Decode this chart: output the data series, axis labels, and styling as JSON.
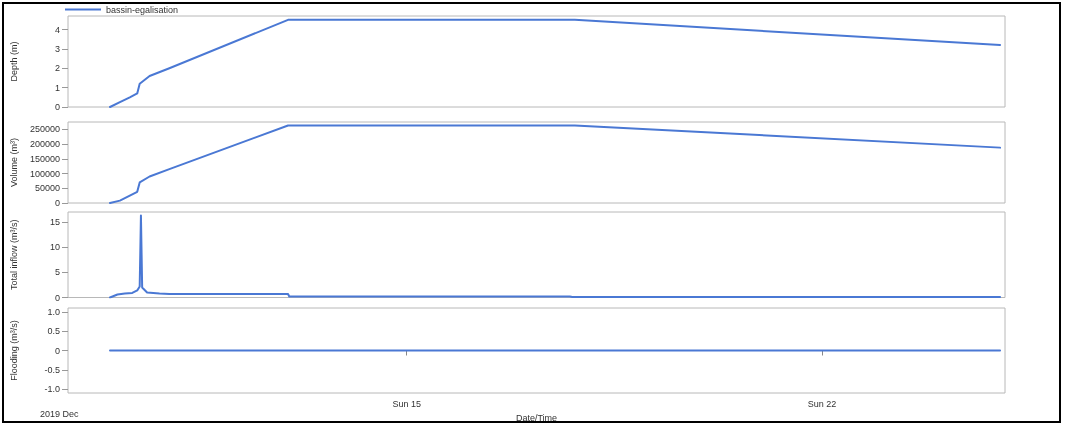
{
  "chart_data": [
    {
      "type": "line",
      "ylabel": "Depth (m)",
      "legend": "top left",
      "tick_labels": "y",
      "grid": false,
      "marker": "none",
      "x": [
        "2019-12-10T00:00",
        "2019-12-10T04:00",
        "2019-12-10T08:00",
        "2019-12-10T11:00",
        "2019-12-10T12:00",
        "2019-12-10T16:00",
        "2019-12-11T00:00",
        "2019-12-13T00:00",
        "2019-12-17T20:00",
        "2019-12-25T00:00"
      ],
      "series": [
        {
          "name": "bassin-egalisation",
          "color": "#4a78d4",
          "values": [
            0,
            0.25,
            0.5,
            0.7,
            1.2,
            1.6,
            2.0,
            4.5,
            4.5,
            3.2
          ]
        }
      ],
      "xlim": [
        "2019-12-09T07:00",
        "2019-12-25T02:00"
      ],
      "ylim": [
        0,
        4.7
      ],
      "yticks": [
        0,
        1,
        2,
        3,
        4
      ]
    },
    {
      "type": "line",
      "ylabel": "Volume (m³)",
      "tick_labels": "y",
      "grid": false,
      "marker": "none",
      "x": [
        "2019-12-10T00:00",
        "2019-12-10T04:00",
        "2019-12-10T08:00",
        "2019-12-10T11:00",
        "2019-12-10T12:00",
        "2019-12-10T16:00",
        "2019-12-11T00:00",
        "2019-12-13T00:00",
        "2019-12-17T20:00",
        "2019-12-25T00:00"
      ],
      "series": [
        {
          "color": "#4a78d4",
          "values": [
            0,
            8000,
            25000,
            38000,
            70000,
            90000,
            115000,
            263000,
            263000,
            188000
          ]
        }
      ],
      "xlim": [
        "2019-12-09T07:00",
        "2019-12-25T02:00"
      ],
      "ylim": [
        0,
        275000
      ],
      "yticks": [
        0,
        50000,
        100000,
        150000,
        200000,
        250000
      ]
    },
    {
      "type": "line",
      "ylabel": "Total inflow (m³/s)",
      "tick_labels": "y",
      "grid": false,
      "marker": "none",
      "x": [
        "2019-12-10T00:00",
        "2019-12-10T03:00",
        "2019-12-10T06:00",
        "2019-12-10T09:00",
        "2019-12-10T11:00",
        "2019-12-10T12:00",
        "2019-12-10T12:30",
        "2019-12-10T13:00",
        "2019-12-10T15:00",
        "2019-12-10T20:00",
        "2019-12-11T00:00",
        "2019-12-13T00:00",
        "2019-12-13T00:30",
        "2019-12-17T18:00",
        "2019-12-17T19:00",
        "2019-12-25T00:00"
      ],
      "series": [
        {
          "color": "#4a78d4",
          "values": [
            0,
            0.6,
            0.8,
            0.9,
            1.4,
            2.2,
            16.3,
            2.0,
            1.0,
            0.8,
            0.7,
            0.7,
            0.2,
            0.2,
            0.1,
            0.1
          ]
        }
      ],
      "xlim": [
        "2019-12-09T07:00",
        "2019-12-25T02:00"
      ],
      "ylim": [
        0,
        17
      ],
      "yticks": [
        0,
        5,
        10,
        15
      ]
    },
    {
      "type": "line",
      "ylabel": "Flooding (m³/s)",
      "xlabel": "Date/Time",
      "grid": false,
      "marker": "none",
      "annotations": [
        "2019 Dec"
      ],
      "x": [
        "2019-12-10T00:00",
        "2019-12-25T00:00"
      ],
      "series": [
        {
          "color": "#4a78d4",
          "values": [
            0,
            0
          ]
        }
      ],
      "xlim": [
        "2019-12-09T07:00",
        "2019-12-25T02:00"
      ],
      "xticks": [
        {
          "value": "2019-12-15T00:00",
          "label": "Sun 15"
        },
        {
          "value": "2019-12-22T00:00",
          "label": "Sun 22"
        }
      ],
      "ylim": [
        -1.1,
        1.1
      ],
      "yticks": [
        {
          "value": -1,
          "label": "-1.0"
        },
        -0.5,
        0,
        0.5,
        {
          "value": 1,
          "label": "1.0"
        }
      ]
    }
  ]
}
